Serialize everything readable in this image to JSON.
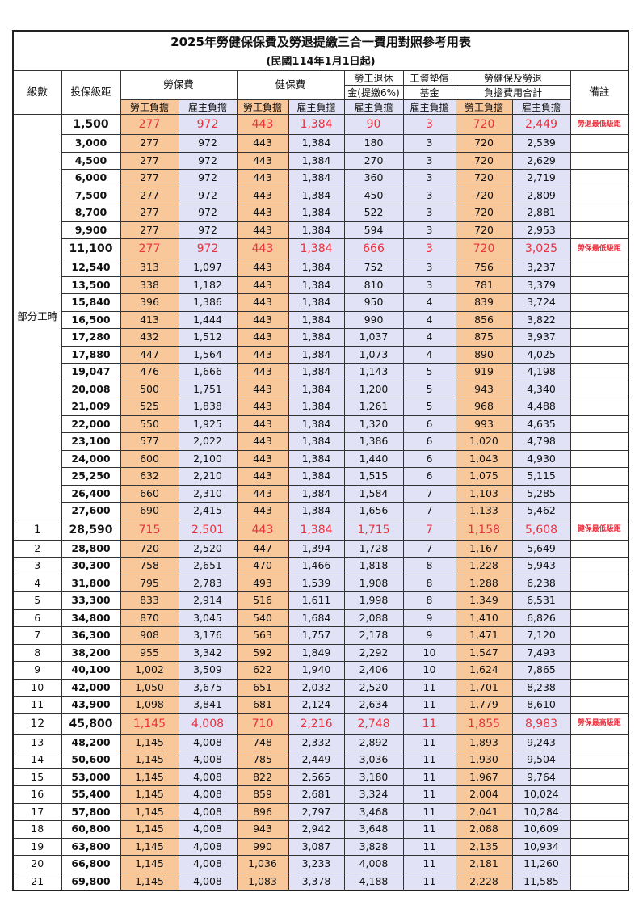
{
  "title": "2025年勞健保保費及勞退提繳三合一費用對照參考用表",
  "subtitle": "(民國114年1月1日起)",
  "headers": {
    "grade": "級數",
    "salary": "投保級距",
    "labor_ins": "勞保費",
    "health_ins": "健保費",
    "pension_1": "勞工退休",
    "pension_2": "金(提繳6%)",
    "wage_fund_1": "工資墊償",
    "wage_fund_2": "基金",
    "total_1": "勞健保及勞退",
    "total_2": "負擔費用合計",
    "note": "備註",
    "worker": "勞工負擔",
    "employer": "雇主負擔"
  },
  "part_time_label": "部分工時",
  "colors": {
    "worker_bg": "#f8c79a",
    "employer_bg": "#e2e2f6",
    "highlight_text": "#e8323e"
  },
  "rows": [
    {
      "grade": "",
      "salary": "1,500",
      "vals": [
        "277",
        "972",
        "443",
        "1,384",
        "90",
        "3",
        "720",
        "2,449"
      ],
      "note": "勞退最低級距",
      "hl": true
    },
    {
      "grade": "",
      "salary": "3,000",
      "vals": [
        "277",
        "972",
        "443",
        "1,384",
        "180",
        "3",
        "720",
        "2,539"
      ],
      "note": ""
    },
    {
      "grade": "",
      "salary": "4,500",
      "vals": [
        "277",
        "972",
        "443",
        "1,384",
        "270",
        "3",
        "720",
        "2,629"
      ],
      "note": ""
    },
    {
      "grade": "",
      "salary": "6,000",
      "vals": [
        "277",
        "972",
        "443",
        "1,384",
        "360",
        "3",
        "720",
        "2,719"
      ],
      "note": ""
    },
    {
      "grade": "",
      "salary": "7,500",
      "vals": [
        "277",
        "972",
        "443",
        "1,384",
        "450",
        "3",
        "720",
        "2,809"
      ],
      "note": ""
    },
    {
      "grade": "",
      "salary": "8,700",
      "vals": [
        "277",
        "972",
        "443",
        "1,384",
        "522",
        "3",
        "720",
        "2,881"
      ],
      "note": ""
    },
    {
      "grade": "",
      "salary": "9,900",
      "vals": [
        "277",
        "972",
        "443",
        "1,384",
        "594",
        "3",
        "720",
        "2,953"
      ],
      "note": ""
    },
    {
      "grade": "",
      "salary": "11,100",
      "vals": [
        "277",
        "972",
        "443",
        "1,384",
        "666",
        "3",
        "720",
        "3,025"
      ],
      "note": "勞保最低級距",
      "hl": true
    },
    {
      "grade": "",
      "salary": "12,540",
      "vals": [
        "313",
        "1,097",
        "443",
        "1,384",
        "752",
        "3",
        "756",
        "3,237"
      ],
      "note": ""
    },
    {
      "grade": "",
      "salary": "13,500",
      "vals": [
        "338",
        "1,182",
        "443",
        "1,384",
        "810",
        "3",
        "781",
        "3,379"
      ],
      "note": ""
    },
    {
      "grade": "",
      "salary": "15,840",
      "vals": [
        "396",
        "1,386",
        "443",
        "1,384",
        "950",
        "4",
        "839",
        "3,724"
      ],
      "note": ""
    },
    {
      "grade": "",
      "salary": "16,500",
      "vals": [
        "413",
        "1,444",
        "443",
        "1,384",
        "990",
        "4",
        "856",
        "3,822"
      ],
      "note": ""
    },
    {
      "grade": "",
      "salary": "17,280",
      "vals": [
        "432",
        "1,512",
        "443",
        "1,384",
        "1,037",
        "4",
        "875",
        "3,937"
      ],
      "note": ""
    },
    {
      "grade": "",
      "salary": "17,880",
      "vals": [
        "447",
        "1,564",
        "443",
        "1,384",
        "1,073",
        "4",
        "890",
        "4,025"
      ],
      "note": ""
    },
    {
      "grade": "",
      "salary": "19,047",
      "vals": [
        "476",
        "1,666",
        "443",
        "1,384",
        "1,143",
        "5",
        "919",
        "4,198"
      ],
      "note": ""
    },
    {
      "grade": "",
      "salary": "20,008",
      "vals": [
        "500",
        "1,751",
        "443",
        "1,384",
        "1,200",
        "5",
        "943",
        "4,340"
      ],
      "note": ""
    },
    {
      "grade": "",
      "salary": "21,009",
      "vals": [
        "525",
        "1,838",
        "443",
        "1,384",
        "1,261",
        "5",
        "968",
        "4,488"
      ],
      "note": ""
    },
    {
      "grade": "",
      "salary": "22,000",
      "vals": [
        "550",
        "1,925",
        "443",
        "1,384",
        "1,320",
        "6",
        "993",
        "4,635"
      ],
      "note": ""
    },
    {
      "grade": "",
      "salary": "23,100",
      "vals": [
        "577",
        "2,022",
        "443",
        "1,384",
        "1,386",
        "6",
        "1,020",
        "4,798"
      ],
      "note": ""
    },
    {
      "grade": "",
      "salary": "24,000",
      "vals": [
        "600",
        "2,100",
        "443",
        "1,384",
        "1,440",
        "6",
        "1,043",
        "4,930"
      ],
      "note": ""
    },
    {
      "grade": "",
      "salary": "25,250",
      "vals": [
        "632",
        "2,210",
        "443",
        "1,384",
        "1,515",
        "6",
        "1,075",
        "5,115"
      ],
      "note": ""
    },
    {
      "grade": "",
      "salary": "26,400",
      "vals": [
        "660",
        "2,310",
        "443",
        "1,384",
        "1,584",
        "7",
        "1,103",
        "5,285"
      ],
      "note": ""
    },
    {
      "grade": "",
      "salary": "27,600",
      "vals": [
        "690",
        "2,415",
        "443",
        "1,384",
        "1,656",
        "7",
        "1,133",
        "5,462"
      ],
      "note": ""
    },
    {
      "grade": "1",
      "salary": "28,590",
      "vals": [
        "715",
        "2,501",
        "443",
        "1,384",
        "1,715",
        "7",
        "1,158",
        "5,608"
      ],
      "note": "健保最低級距",
      "hl": true
    },
    {
      "grade": "2",
      "salary": "28,800",
      "vals": [
        "720",
        "2,520",
        "447",
        "1,394",
        "1,728",
        "7",
        "1,167",
        "5,649"
      ],
      "note": ""
    },
    {
      "grade": "3",
      "salary": "30,300",
      "vals": [
        "758",
        "2,651",
        "470",
        "1,466",
        "1,818",
        "8",
        "1,228",
        "5,943"
      ],
      "note": ""
    },
    {
      "grade": "4",
      "salary": "31,800",
      "vals": [
        "795",
        "2,783",
        "493",
        "1,539",
        "1,908",
        "8",
        "1,288",
        "6,238"
      ],
      "note": ""
    },
    {
      "grade": "5",
      "salary": "33,300",
      "vals": [
        "833",
        "2,914",
        "516",
        "1,611",
        "1,998",
        "8",
        "1,349",
        "6,531"
      ],
      "note": ""
    },
    {
      "grade": "6",
      "salary": "34,800",
      "vals": [
        "870",
        "3,045",
        "540",
        "1,684",
        "2,088",
        "9",
        "1,410",
        "6,826"
      ],
      "note": ""
    },
    {
      "grade": "7",
      "salary": "36,300",
      "vals": [
        "908",
        "3,176",
        "563",
        "1,757",
        "2,178",
        "9",
        "1,471",
        "7,120"
      ],
      "note": ""
    },
    {
      "grade": "8",
      "salary": "38,200",
      "vals": [
        "955",
        "3,342",
        "592",
        "1,849",
        "2,292",
        "10",
        "1,547",
        "7,493"
      ],
      "note": ""
    },
    {
      "grade": "9",
      "salary": "40,100",
      "vals": [
        "1,002",
        "3,509",
        "622",
        "1,940",
        "2,406",
        "10",
        "1,624",
        "7,865"
      ],
      "note": ""
    },
    {
      "grade": "10",
      "salary": "42,000",
      "vals": [
        "1,050",
        "3,675",
        "651",
        "2,032",
        "2,520",
        "11",
        "1,701",
        "8,238"
      ],
      "note": ""
    },
    {
      "grade": "11",
      "salary": "43,900",
      "vals": [
        "1,098",
        "3,841",
        "681",
        "2,124",
        "2,634",
        "11",
        "1,779",
        "8,610"
      ],
      "note": ""
    },
    {
      "grade": "12",
      "salary": "45,800",
      "vals": [
        "1,145",
        "4,008",
        "710",
        "2,216",
        "2,748",
        "11",
        "1,855",
        "8,983"
      ],
      "note": "勞保最高級距",
      "hl": true
    },
    {
      "grade": "13",
      "salary": "48,200",
      "vals": [
        "1,145",
        "4,008",
        "748",
        "2,332",
        "2,892",
        "11",
        "1,893",
        "9,243"
      ],
      "note": ""
    },
    {
      "grade": "14",
      "salary": "50,600",
      "vals": [
        "1,145",
        "4,008",
        "785",
        "2,449",
        "3,036",
        "11",
        "1,930",
        "9,504"
      ],
      "note": ""
    },
    {
      "grade": "15",
      "salary": "53,000",
      "vals": [
        "1,145",
        "4,008",
        "822",
        "2,565",
        "3,180",
        "11",
        "1,967",
        "9,764"
      ],
      "note": ""
    },
    {
      "grade": "16",
      "salary": "55,400",
      "vals": [
        "1,145",
        "4,008",
        "859",
        "2,681",
        "3,324",
        "11",
        "2,004",
        "10,024"
      ],
      "note": ""
    },
    {
      "grade": "17",
      "salary": "57,800",
      "vals": [
        "1,145",
        "4,008",
        "896",
        "2,797",
        "3,468",
        "11",
        "2,041",
        "10,284"
      ],
      "note": ""
    },
    {
      "grade": "18",
      "salary": "60,800",
      "vals": [
        "1,145",
        "4,008",
        "943",
        "2,942",
        "3,648",
        "11",
        "2,088",
        "10,609"
      ],
      "note": ""
    },
    {
      "grade": "19",
      "salary": "63,800",
      "vals": [
        "1,145",
        "4,008",
        "990",
        "3,087",
        "3,828",
        "11",
        "2,135",
        "10,934"
      ],
      "note": ""
    },
    {
      "grade": "20",
      "salary": "66,800",
      "vals": [
        "1,145",
        "4,008",
        "1,036",
        "3,233",
        "4,008",
        "11",
        "2,181",
        "11,260"
      ],
      "note": ""
    },
    {
      "grade": "21",
      "salary": "69,800",
      "vals": [
        "1,145",
        "4,008",
        "1,083",
        "3,378",
        "4,188",
        "11",
        "2,228",
        "11,585"
      ],
      "note": ""
    }
  ]
}
